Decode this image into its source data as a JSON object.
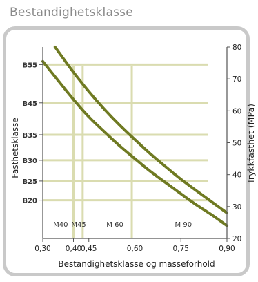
{
  "header": {
    "title": "Bestandighetsklasse"
  },
  "chart_data": {
    "type": "line",
    "xlabel": "Bestandighetsklasse og masseforhold",
    "ylabel_left": "Fasthetsklasse",
    "ylabel_right": "Trykkfasthet (MPa)",
    "xlim": [
      0.3,
      0.9
    ],
    "ylim": [
      20,
      80
    ],
    "x_ticks": [
      0.3,
      0.4,
      0.45,
      0.6,
      0.75,
      0.9
    ],
    "x_tick_labels": [
      "0,30",
      "0,40",
      "0,45",
      "0,60",
      "0,75",
      "0,90"
    ],
    "y_ticks": [
      20,
      30,
      40,
      50,
      60,
      70,
      80
    ],
    "y_tick_labels": [
      "20",
      "30",
      "40",
      "50",
      "60",
      "70",
      "80"
    ],
    "strength_classes": [
      {
        "label": "B55",
        "value": 74.5
      },
      {
        "label": "B45",
        "value": 62.5
      },
      {
        "label": "B35",
        "value": 52.5
      },
      {
        "label": "B30",
        "value": 44.5
      },
      {
        "label": "B25",
        "value": 38
      },
      {
        "label": "B20",
        "value": 32
      }
    ],
    "exposure_classes": [
      {
        "label": "M40",
        "x": 0.4,
        "label_x": 0.358
      },
      {
        "label": "M45",
        "x": 0.43,
        "label_x": 0.417
      },
      {
        "label": "M 60",
        "x": 0.59,
        "label_x": 0.535
      },
      {
        "label": "M 90",
        "x": 0.9,
        "label_x": 0.758
      }
    ],
    "series": [
      {
        "x": [
          0.3,
          0.35,
          0.4,
          0.45,
          0.5,
          0.55,
          0.6,
          0.65,
          0.7,
          0.75,
          0.8,
          0.85,
          0.9
        ],
        "values": [
          75.5,
          69.5,
          63.5,
          58,
          53.5,
          49,
          45,
          41,
          37.5,
          34,
          30.5,
          27.5,
          24
        ]
      },
      {
        "x": [
          0.34,
          0.4,
          0.45,
          0.5,
          0.55,
          0.6,
          0.65,
          0.7,
          0.75,
          0.8,
          0.85,
          0.9
        ],
        "values": [
          80,
          72,
          66,
          60.5,
          55.5,
          51,
          46.5,
          42.5,
          38.5,
          35,
          31.5,
          28
        ]
      }
    ],
    "colors": {
      "curve": "#6f7a22",
      "grid": "#dadcb0",
      "axis": "#555555",
      "frame": "#c9c9c9"
    },
    "grid": true,
    "legend": "none"
  }
}
